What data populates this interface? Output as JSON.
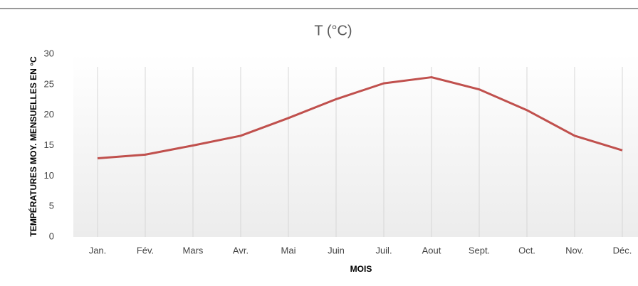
{
  "chart_data": {
    "type": "line",
    "title": "T (°C)",
    "x_label": "MOIS",
    "y_label": "TEMPÉRATURES MOY. MENSUELLES EN °C",
    "categories": [
      "Jan.",
      "Fév.",
      "Mars",
      "Avr.",
      "Mai",
      "Juin",
      "Juil.",
      "Aout",
      "Sept.",
      "Oct.",
      "Nov.",
      "Déc."
    ],
    "values": [
      12.9,
      13.5,
      15.0,
      16.6,
      19.5,
      22.6,
      25.2,
      26.2,
      24.2,
      20.8,
      16.6,
      14.2
    ],
    "color": "#c0504d",
    "ylim": [
      0,
      30
    ],
    "yticks": [
      0,
      5,
      10,
      15,
      20,
      25,
      30
    ],
    "grid": "vertical"
  }
}
